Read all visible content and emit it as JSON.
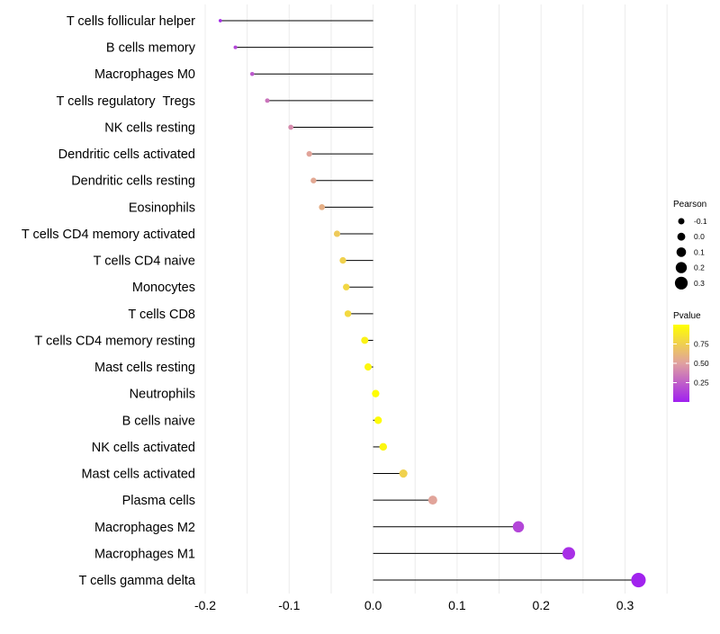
{
  "chart_data": {
    "type": "lollipop",
    "title": "",
    "xlabel": "",
    "ylabel": "",
    "xlim": [
      -0.2,
      0.33
    ],
    "x_ticks": [
      -0.2,
      -0.1,
      0.0,
      0.1,
      0.2,
      0.3
    ],
    "x_tick_labels": [
      "-0.2",
      "-0.1",
      "0.0",
      "0.1",
      "0.2",
      "0.3"
    ],
    "baseline": 0,
    "grid": "vertical minor",
    "categories": [
      "T cells follicular helper",
      "B cells memory",
      "Macrophages M0",
      "T cells regulatory  Tregs",
      "NK cells resting",
      "Dendritic cells activated",
      "Dendritic cells resting",
      "Eosinophils",
      "T cells CD4 memory activated",
      "T cells CD4 naive",
      "Monocytes",
      "T cells CD8",
      "T cells CD4 memory resting",
      "Mast cells resting",
      "Neutrophils",
      "B cells naive",
      "NK cells activated",
      "Mast cells activated",
      "Plasma cells",
      "Macrophages M2",
      "Macrophages M1",
      "T cells gamma delta"
    ],
    "pearson": [
      -0.182,
      -0.164,
      -0.144,
      -0.126,
      -0.098,
      -0.076,
      -0.071,
      -0.061,
      -0.043,
      -0.036,
      -0.032,
      -0.03,
      -0.01,
      -0.006,
      0.003,
      0.006,
      0.012,
      0.036,
      0.071,
      0.173,
      0.233,
      0.316
    ],
    "pvalue": [
      0.05,
      0.15,
      0.22,
      0.33,
      0.42,
      0.52,
      0.54,
      0.58,
      0.72,
      0.76,
      0.79,
      0.8,
      0.93,
      0.96,
      0.99,
      0.98,
      0.95,
      0.76,
      0.52,
      0.15,
      0.06,
      0.01
    ],
    "legend_size": {
      "title": "Pearson",
      "labels": [
        "-0.1",
        "0.0",
        "0.1",
        "0.2",
        "0.3"
      ],
      "values": [
        -0.1,
        0.0,
        0.1,
        0.2,
        0.3
      ]
    },
    "legend_color": {
      "title": "Pvalue",
      "labels": [
        "0.75",
        "0.50",
        "0.25"
      ],
      "values": [
        0.75,
        0.5,
        0.25
      ],
      "range": [
        0.0,
        1.0
      ],
      "low_color": "#a020f0",
      "mid_color": "#e0a0a0",
      "high_color": "#ffff00"
    },
    "legend_placement": "right"
  },
  "colors": {
    "grid": "#ececec",
    "segment": "#000000",
    "text": "#000000"
  }
}
